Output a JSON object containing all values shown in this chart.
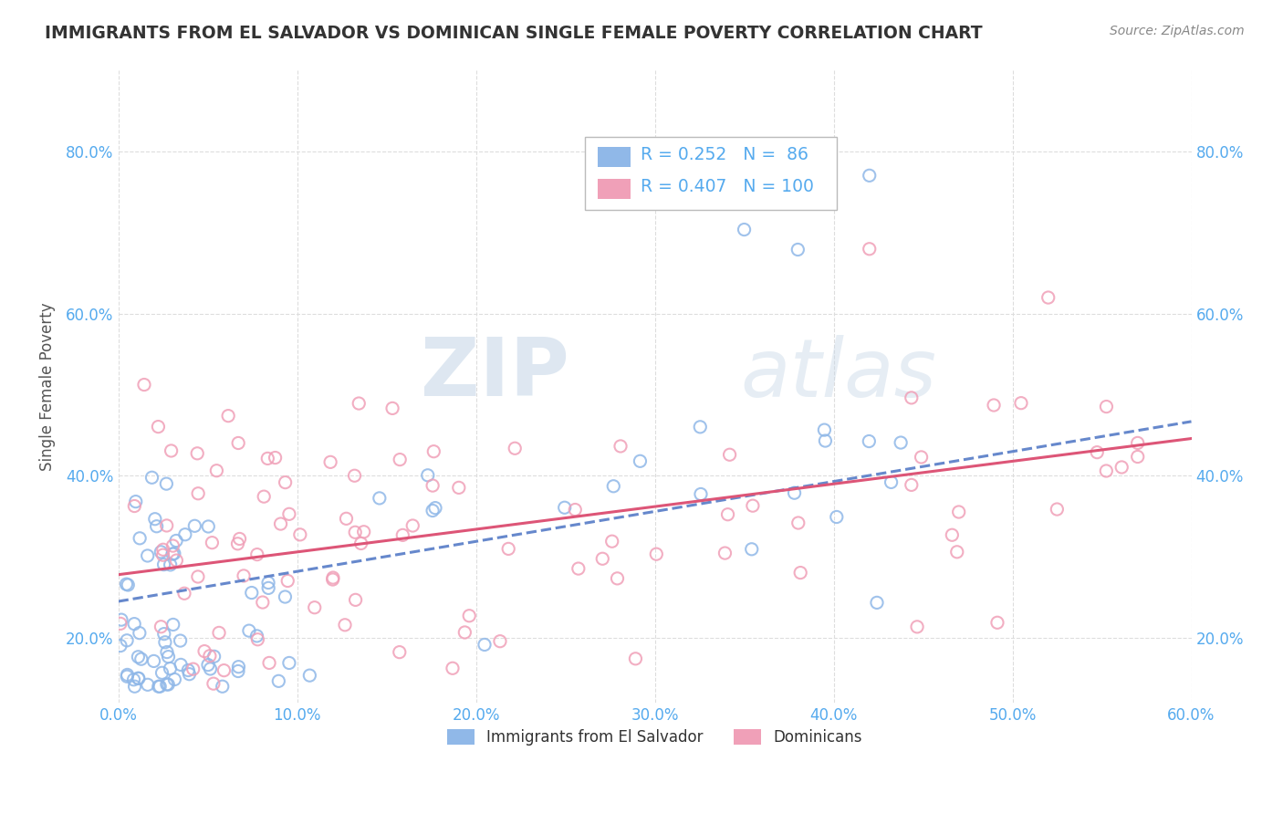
{
  "title": "IMMIGRANTS FROM EL SALVADOR VS DOMINICAN SINGLE FEMALE POVERTY CORRELATION CHART",
  "source": "Source: ZipAtlas.com",
  "ylabel": "Single Female Poverty",
  "legend_label1": "Immigrants from El Salvador",
  "legend_label2": "Dominicans",
  "r1": 0.252,
  "n1": 86,
  "r2": 0.407,
  "n2": 100,
  "color1": "#90b8e8",
  "color2": "#f0a0b8",
  "line1_color": "#6688cc",
  "line2_color": "#dd5577",
  "watermark_zip": "ZIP",
  "watermark_atlas": "atlas",
  "title_color": "#333333",
  "title_fontsize": 13.5,
  "source_color": "#888888",
  "ytick_color": "#55aaee",
  "xlim": [
    0.0,
    0.6
  ],
  "ylim": [
    0.12,
    0.9
  ],
  "line1_intercept": 0.245,
  "line1_slope": 0.37,
  "line2_intercept": 0.278,
  "line2_slope": 0.28,
  "background_color": "#ffffff",
  "grid_color": "#dddddd"
}
